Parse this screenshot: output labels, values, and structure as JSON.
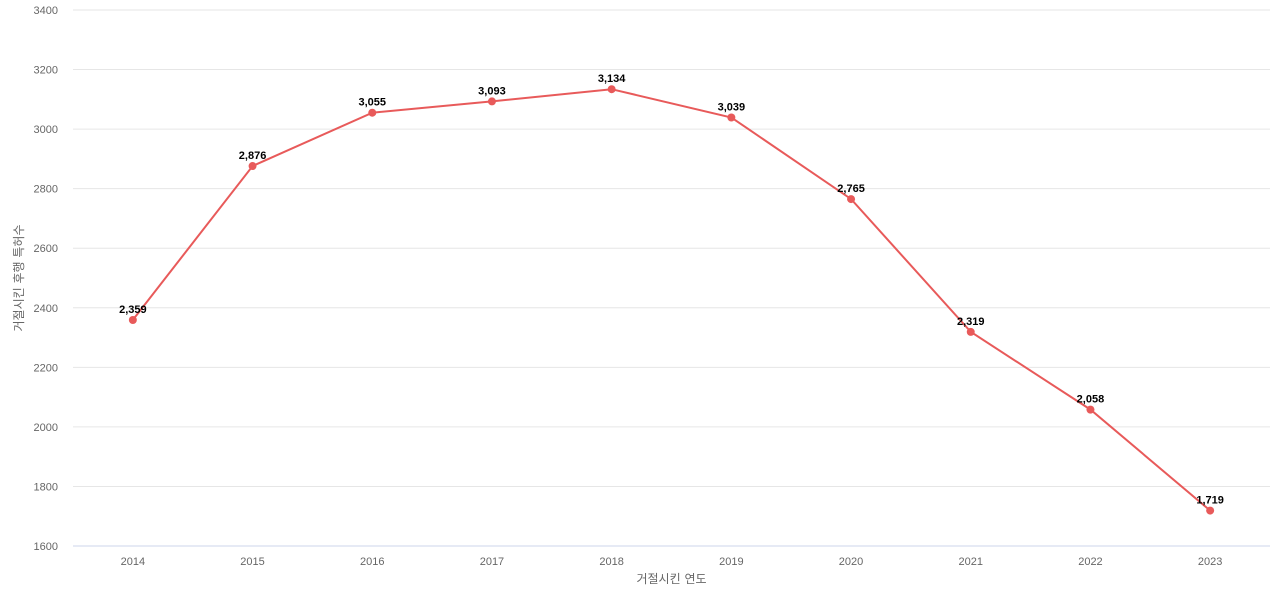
{
  "chart_data": {
    "type": "line",
    "title": "",
    "xlabel": "거절시킨 연도",
    "ylabel": "거절시킨 후행 특허수",
    "categories": [
      "2014",
      "2015",
      "2016",
      "2017",
      "2018",
      "2019",
      "2020",
      "2021",
      "2022",
      "2023"
    ],
    "series": [
      {
        "values": [
          2359,
          2876,
          3055,
          3093,
          3134,
          3039,
          2765,
          2319,
          2058,
          1719
        ],
        "data_labels": [
          "2,359",
          "2,876",
          "3,055",
          "3,093",
          "3,134",
          "3,039",
          "2,765",
          "2,319",
          "2,058",
          "1,719"
        ],
        "color": "#e85a5a"
      }
    ],
    "yticks": [
      "1600",
      "1800",
      "2000",
      "2200",
      "2400",
      "2600",
      "2800",
      "3000",
      "3200",
      "3400"
    ],
    "ylim": [
      1600,
      3400
    ],
    "grid": true,
    "legend": "none"
  }
}
